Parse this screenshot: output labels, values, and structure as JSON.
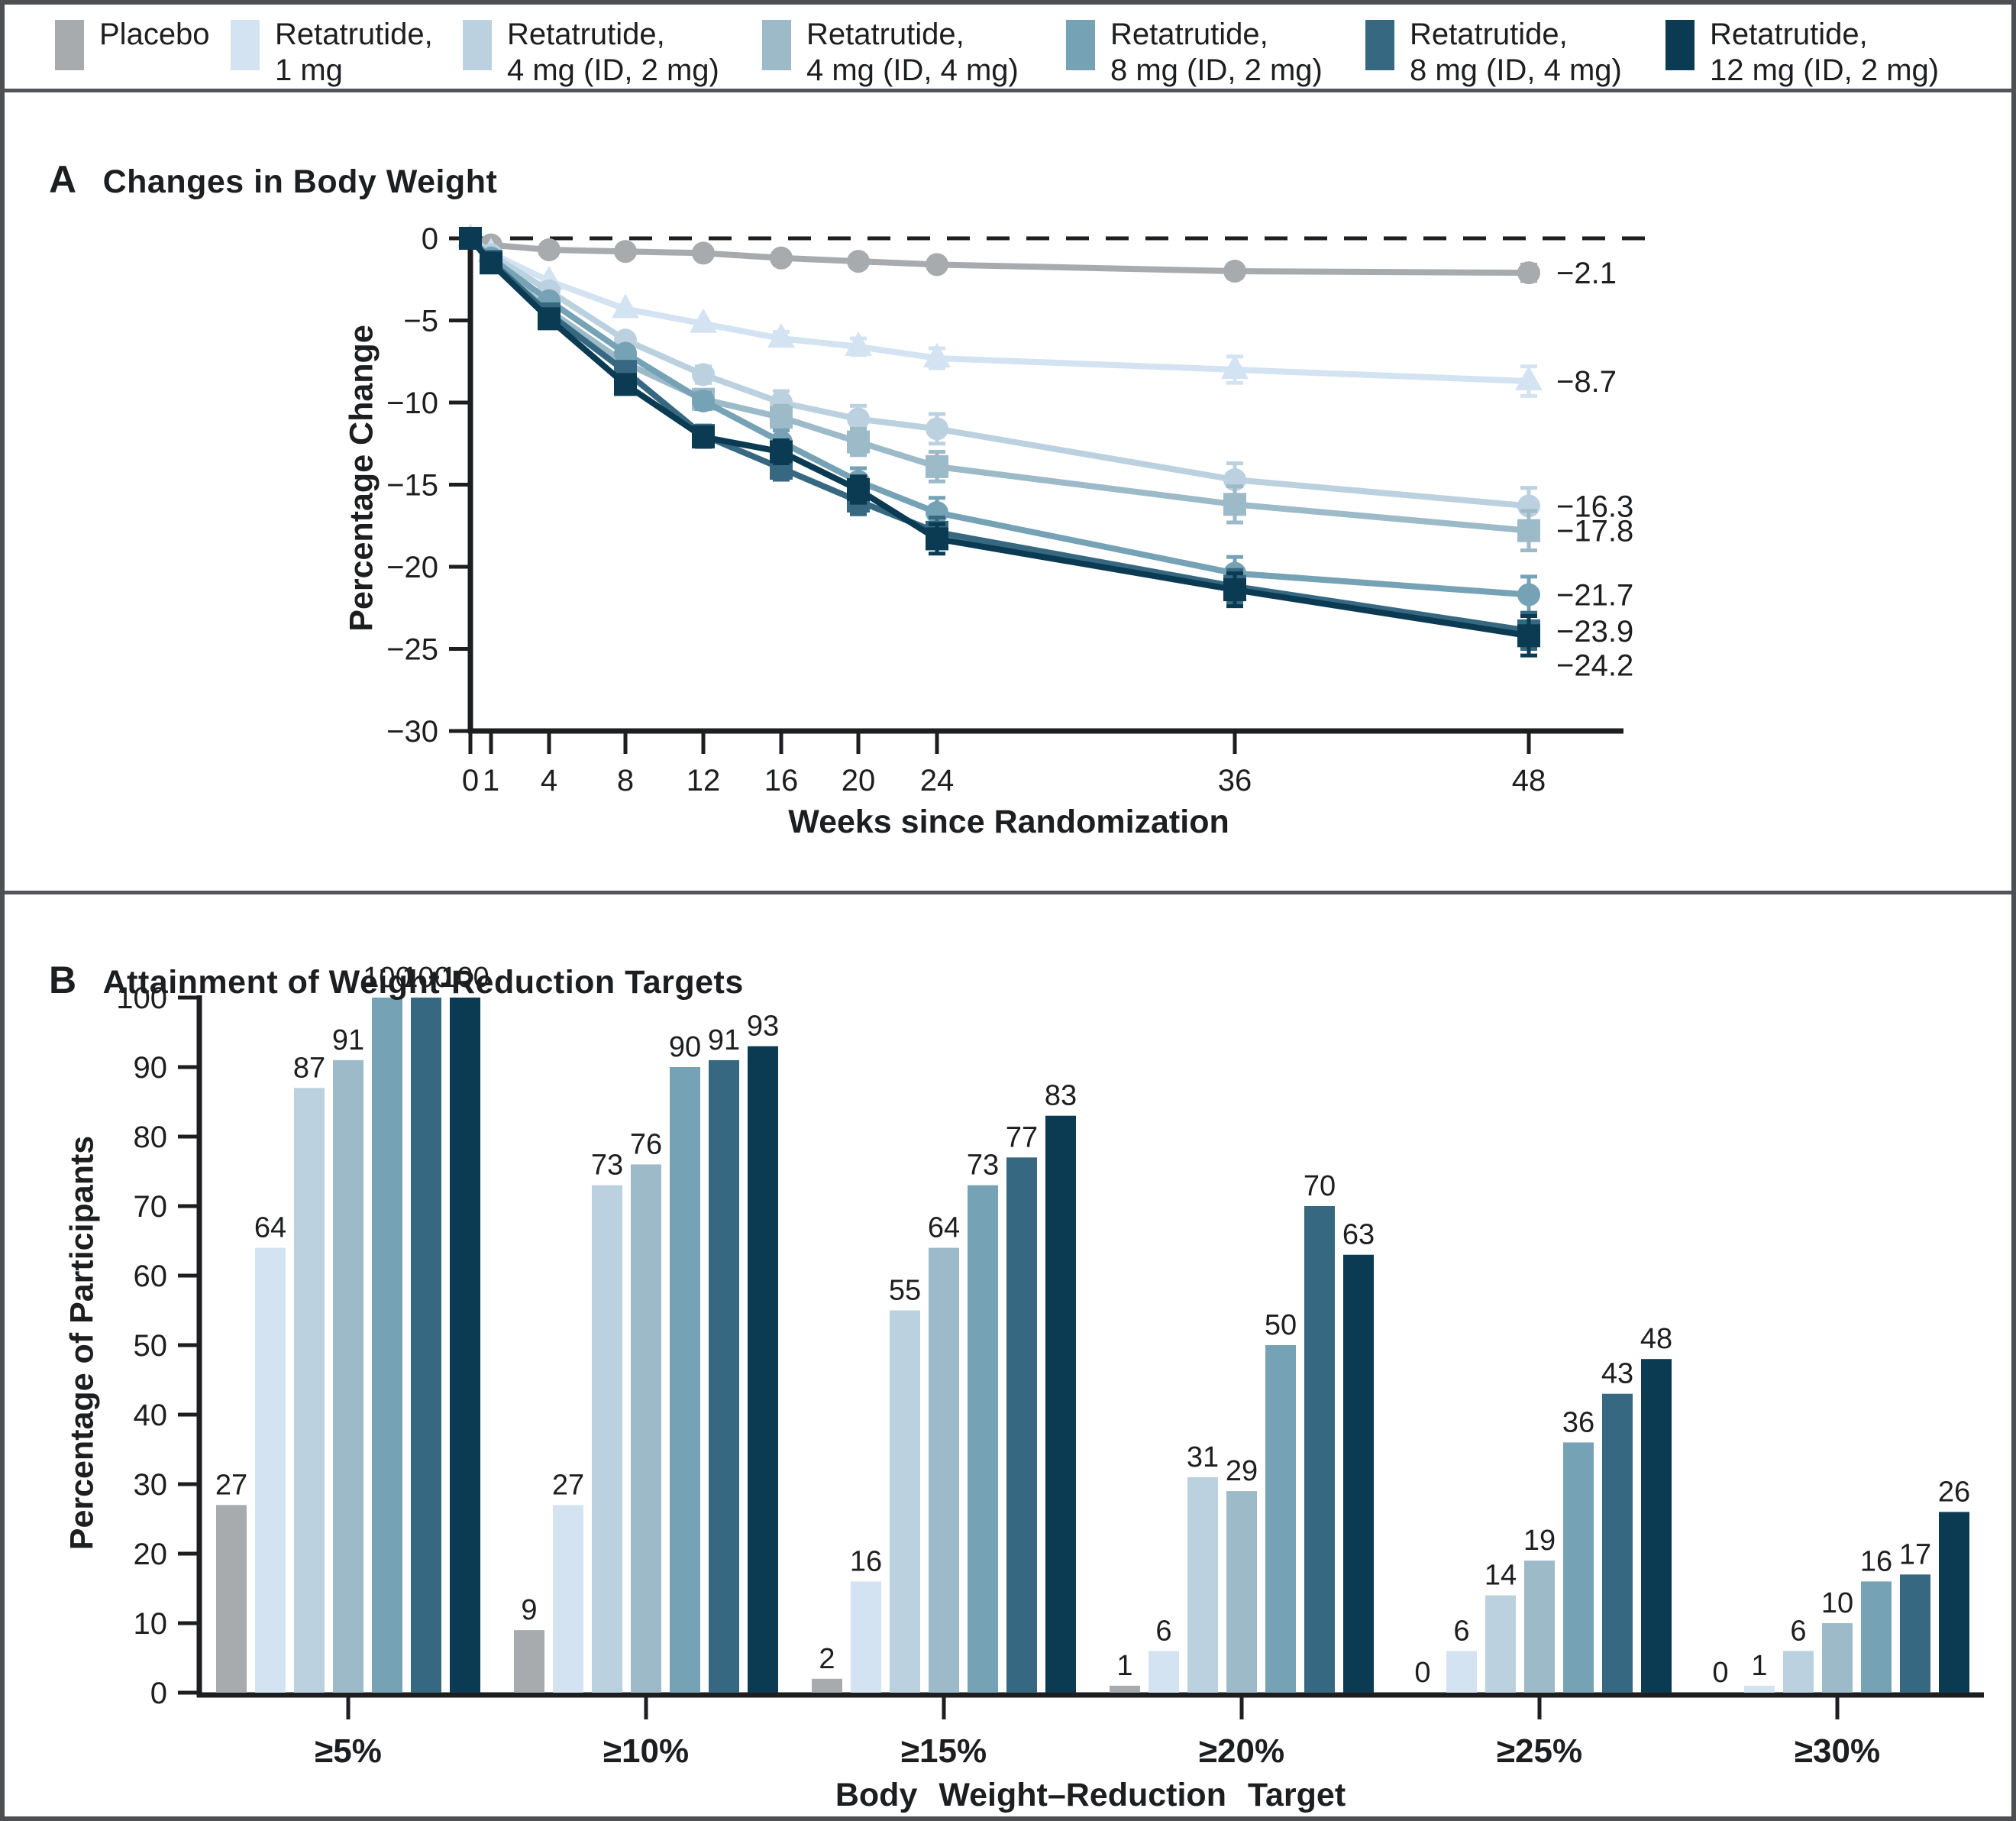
{
  "figure": {
    "panel_a": {
      "letter": "A",
      "title": "Changes in Body Weight",
      "xlabel": "Weeks since Randomization",
      "ylabel": "Percentage Change"
    },
    "panel_b": {
      "letter": "B",
      "title": "Attainment of Weight-Reduction Targets",
      "xlabel": "Body Weight–Reduction Target",
      "ylabel": "Percentage of Participants"
    }
  },
  "legend": {
    "items": [
      {
        "line1": "Placebo",
        "line2": "",
        "color": "#a8abae"
      },
      {
        "line1": "Retatrutide,",
        "line2": "1 mg",
        "color": "#d3e3f2"
      },
      {
        "line1": "Retatrutide,",
        "line2": "4 mg (ID, 2 mg)",
        "color": "#bcd1df"
      },
      {
        "line1": "Retatrutide,",
        "line2": "4 mg (ID, 4 mg)",
        "color": "#9dbac9"
      },
      {
        "line1": "Retatrutide,",
        "line2": "8 mg (ID, 2 mg)",
        "color": "#76a2b5"
      },
      {
        "line1": "Retatrutide,",
        "line2": "8 mg (ID, 4 mg)",
        "color": "#366981"
      },
      {
        "line1": "Retatrutide,",
        "line2": "12 mg (ID, 2 mg)",
        "color": "#0b3a53"
      }
    ]
  },
  "chart_data": [
    {
      "type": "line",
      "title": "Changes in Body Weight",
      "xlabel": "Weeks since Randomization",
      "ylabel": "Percentage Change",
      "x": [
        0,
        1,
        4,
        8,
        12,
        16,
        20,
        24,
        36,
        48
      ],
      "ylim": [
        -30,
        0
      ],
      "yticks": [
        0,
        -5,
        -10,
        -15,
        -20,
        -25,
        -30
      ],
      "zero_reference_line": true,
      "error_bars_shown": true,
      "legend_position": "top-strip",
      "grid": false,
      "series": [
        {
          "name": "Placebo",
          "color": "#a8abae",
          "marker": "circle",
          "values": [
            0,
            -0.4,
            -0.7,
            -0.8,
            -0.9,
            -1.2,
            -1.4,
            -1.6,
            -2.0,
            -2.1
          ],
          "err": [
            0,
            0,
            0,
            0,
            0,
            0,
            0,
            0.3,
            0.4,
            0.5
          ],
          "end_label": "−2.1"
        },
        {
          "name": "Retatrutide, 1 mg",
          "color": "#d3e3f2",
          "marker": "triangle",
          "values": [
            0,
            -0.9,
            -2.6,
            -4.3,
            -5.2,
            -6.1,
            -6.6,
            -7.3,
            -8.0,
            -8.7
          ],
          "err": [
            0,
            0,
            0,
            0,
            0,
            0.4,
            0.5,
            0.6,
            0.8,
            0.9
          ],
          "end_label": "−8.7"
        },
        {
          "name": "Retatrutide, 4 mg (ID, 2 mg)",
          "color": "#bcd1df",
          "marker": "circle",
          "values": [
            0,
            -1.0,
            -3.2,
            -6.2,
            -8.3,
            -10.0,
            -11.0,
            -11.6,
            -14.7,
            -16.3
          ],
          "err": [
            0,
            0,
            0,
            0,
            0.5,
            0.7,
            0.8,
            0.9,
            1.0,
            1.1
          ],
          "end_label": "−16.3"
        },
        {
          "name": "Retatrutide, 4 mg (ID, 4 mg)",
          "color": "#9dbac9",
          "marker": "square",
          "values": [
            0,
            -1.4,
            -4.4,
            -7.6,
            -9.8,
            -10.9,
            -12.4,
            -13.9,
            -16.2,
            -17.8
          ],
          "err": [
            0,
            0,
            0,
            0,
            0.5,
            0.7,
            0.8,
            0.9,
            1.1,
            1.2
          ],
          "end_label": "−17.8"
        },
        {
          "name": "Retatrutide, 8 mg (ID, 2 mg)",
          "color": "#76a2b5",
          "marker": "circle",
          "values": [
            0,
            -1.2,
            -3.8,
            -7.0,
            -9.9,
            -12.4,
            -14.8,
            -16.7,
            -20.4,
            -21.7
          ],
          "err": [
            0,
            0,
            0,
            0,
            0.5,
            0.7,
            0.8,
            0.9,
            1.0,
            1.1
          ],
          "end_label": "−21.7"
        },
        {
          "name": "Retatrutide, 8 mg (ID, 4 mg)",
          "color": "#366981",
          "marker": "square",
          "values": [
            0,
            -1.4,
            -4.6,
            -8.1,
            -12.0,
            -14.0,
            -16.0,
            -17.9,
            -21.2,
            -23.9
          ],
          "err": [
            0,
            0,
            0,
            0,
            0.6,
            0.7,
            0.8,
            0.9,
            1.0,
            1.1
          ],
          "end_label": "−23.9"
        },
        {
          "name": "Retatrutide, 12 mg (ID, 2 mg)",
          "color": "#0b3a53",
          "marker": "square",
          "values": [
            0,
            -1.5,
            -4.9,
            -8.9,
            -12.1,
            -13.0,
            -15.3,
            -18.3,
            -21.4,
            -24.2
          ],
          "err": [
            0,
            0,
            0,
            0,
            0.6,
            0.7,
            0.8,
            0.9,
            1.0,
            1.2
          ],
          "end_label": "−24.2"
        }
      ]
    },
    {
      "type": "bar",
      "title": "Attainment of Weight-Reduction Targets",
      "xlabel": "Body Weight–Reduction Target",
      "ylabel": "Percentage of Participants",
      "categories": [
        "≥5%",
        "≥10%",
        "≥15%",
        "≥20%",
        "≥25%",
        "≥30%"
      ],
      "ylim": [
        0,
        100
      ],
      "yticks": [
        0,
        10,
        20,
        30,
        40,
        50,
        60,
        70,
        80,
        90,
        100
      ],
      "grid": false,
      "value_labels_shown": true,
      "series": [
        {
          "name": "Placebo",
          "color": "#a8abae",
          "values": [
            27,
            9,
            2,
            1,
            0,
            0
          ]
        },
        {
          "name": "Retatrutide, 1 mg",
          "color": "#d3e3f2",
          "values": [
            64,
            27,
            16,
            6,
            6,
            1
          ]
        },
        {
          "name": "Retatrutide, 4 mg (ID, 2 mg)",
          "color": "#bcd1df",
          "values": [
            87,
            73,
            55,
            31,
            14,
            6
          ]
        },
        {
          "name": "Retatrutide, 4 mg (ID, 4 mg)",
          "color": "#9dbac9",
          "values": [
            91,
            76,
            64,
            29,
            19,
            10
          ]
        },
        {
          "name": "Retatrutide, 8 mg (ID, 2 mg)",
          "color": "#76a2b5",
          "values": [
            100,
            90,
            73,
            50,
            36,
            16
          ]
        },
        {
          "name": "Retatrutide, 8 mg (ID, 4 mg)",
          "color": "#366981",
          "values": [
            100,
            91,
            77,
            70,
            43,
            17
          ]
        },
        {
          "name": "Retatrutide, 12 mg (ID, 2 mg)",
          "color": "#0b3a53",
          "values": [
            100,
            93,
            83,
            63,
            48,
            26
          ]
        }
      ]
    }
  ]
}
